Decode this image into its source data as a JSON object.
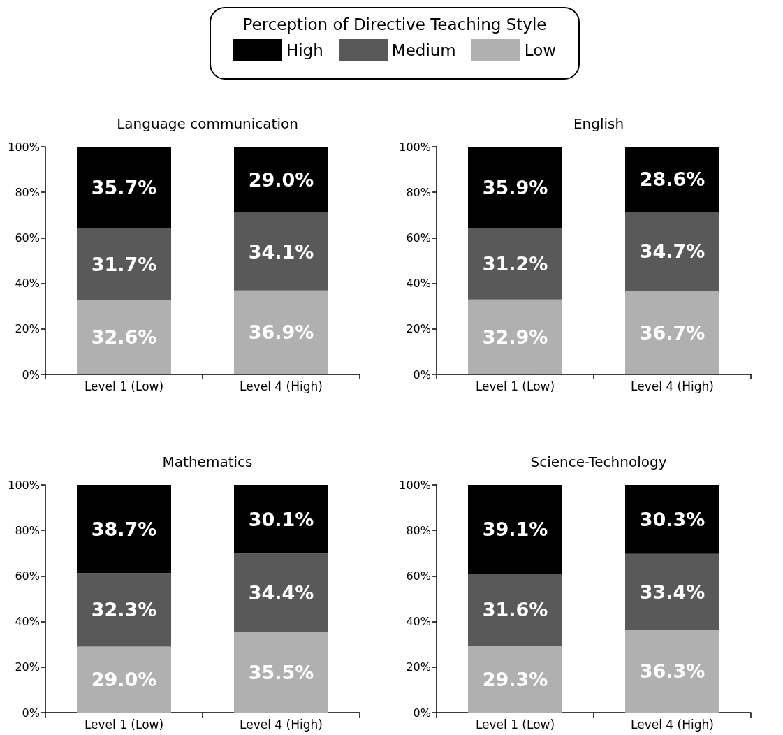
{
  "chart_data": [
    {
      "type": "bar",
      "title": "Language communication",
      "stacked": true,
      "legend": "top",
      "legend_title": "Perception of Directive Teaching Style",
      "categories": [
        "Level 1 (Low)",
        "Level 4 (High)"
      ],
      "ylim": [
        0,
        100
      ],
      "yticks": [
        {
          "value": 0,
          "label": "0%"
        },
        {
          "value": 20,
          "label": "20%"
        },
        {
          "value": 40,
          "label": "40%"
        },
        {
          "value": 60,
          "label": "60%"
        },
        {
          "value": 80,
          "label": "80%"
        },
        {
          "value": 100,
          "label": "100%"
        }
      ],
      "grid": false,
      "series": [
        {
          "name": "Low",
          "color": "#b0b0b0",
          "values": [
            32.6,
            36.9
          ],
          "value_labels": [
            "32.6%",
            "36.9%"
          ]
        },
        {
          "name": "Medium",
          "color": "#595959",
          "values": [
            31.7,
            34.1
          ],
          "value_labels": [
            "31.7%",
            "34.1%"
          ]
        },
        {
          "name": "High",
          "color": "#000000",
          "values": [
            35.7,
            29.0
          ],
          "value_labels": [
            "35.7%",
            "29.0%"
          ]
        }
      ]
    },
    {
      "type": "bar",
      "title": "English",
      "stacked": true,
      "categories": [
        "Level 1 (Low)",
        "Level 4 (High)"
      ],
      "ylim": [
        0,
        100
      ],
      "yticks": [
        {
          "value": 0,
          "label": "0%"
        },
        {
          "value": 20,
          "label": "20%"
        },
        {
          "value": 40,
          "label": "40%"
        },
        {
          "value": 60,
          "label": "60%"
        },
        {
          "value": 80,
          "label": "80%"
        },
        {
          "value": 100,
          "label": "100%"
        }
      ],
      "grid": false,
      "series": [
        {
          "color": "#b0b0b0",
          "values": [
            32.9,
            36.7
          ],
          "value_labels": [
            "32.9%",
            "36.7%"
          ]
        },
        {
          "color": "#595959",
          "values": [
            31.2,
            34.7
          ],
          "value_labels": [
            "31.2%",
            "34.7%"
          ]
        },
        {
          "color": "#000000",
          "values": [
            35.9,
            28.6
          ],
          "value_labels": [
            "35.9%",
            "28.6%"
          ]
        }
      ]
    },
    {
      "type": "bar",
      "title": "Mathematics",
      "stacked": true,
      "categories": [
        "Level 1 (Low)",
        "Level 4 (High)"
      ],
      "ylim": [
        0,
        100
      ],
      "yticks": [
        {
          "value": 0,
          "label": "0%"
        },
        {
          "value": 20,
          "label": "20%"
        },
        {
          "value": 40,
          "label": "40%"
        },
        {
          "value": 60,
          "label": "60%"
        },
        {
          "value": 80,
          "label": "80%"
        },
        {
          "value": 100,
          "label": "100%"
        }
      ],
      "grid": false,
      "series": [
        {
          "color": "#b0b0b0",
          "values": [
            29.0,
            35.5
          ],
          "value_labels": [
            "29.0%",
            "35.5%"
          ]
        },
        {
          "color": "#595959",
          "values": [
            32.3,
            34.4
          ],
          "value_labels": [
            "32.3%",
            "34.4%"
          ]
        },
        {
          "color": "#000000",
          "values": [
            38.7,
            30.1
          ],
          "value_labels": [
            "38.7%",
            "30.1%"
          ]
        }
      ]
    },
    {
      "type": "bar",
      "title": "Science-Technology",
      "stacked": true,
      "categories": [
        "Level 1 (Low)",
        "Level 4 (High)"
      ],
      "ylim": [
        0,
        100
      ],
      "yticks": [
        {
          "value": 0,
          "label": "0%"
        },
        {
          "value": 20,
          "label": "20%"
        },
        {
          "value": 40,
          "label": "40%"
        },
        {
          "value": 60,
          "label": "60%"
        },
        {
          "value": 80,
          "label": "80%"
        },
        {
          "value": 100,
          "label": "100%"
        }
      ],
      "grid": false,
      "series": [
        {
          "color": "#b0b0b0",
          "values": [
            29.3,
            36.3
          ],
          "value_labels": [
            "29.3%",
            "36.3%"
          ]
        },
        {
          "color": "#595959",
          "values": [
            31.6,
            33.4
          ],
          "value_labels": [
            "31.6%",
            "33.4%"
          ]
        },
        {
          "color": "#000000",
          "values": [
            39.1,
            30.3
          ],
          "value_labels": [
            "39.1%",
            "30.3%"
          ]
        }
      ]
    }
  ]
}
